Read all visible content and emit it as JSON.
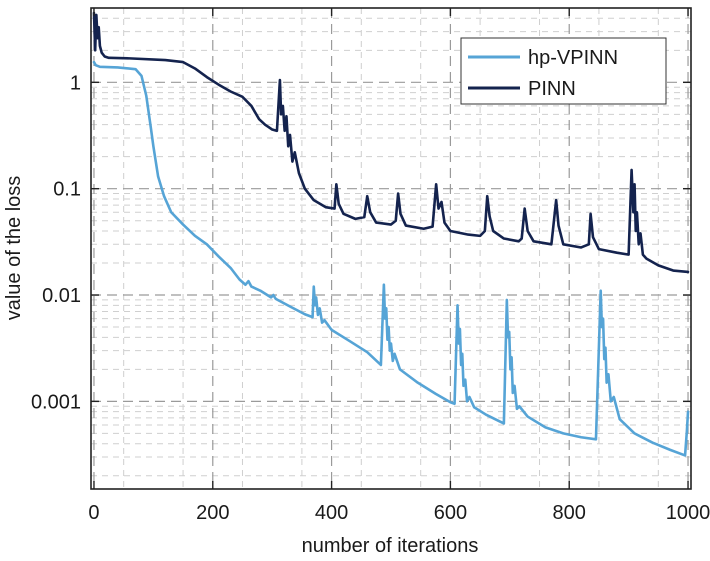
{
  "chart_data": {
    "type": "line",
    "title": "",
    "xlabel": "number of iterations",
    "ylabel": "value of the loss",
    "xscale": "linear",
    "yscale": "log",
    "xlim": [
      -5,
      1005
    ],
    "ylim": [
      0.00015,
      5
    ],
    "xticks": [
      0,
      200,
      400,
      600,
      800,
      1000
    ],
    "xtick_labels": [
      "0",
      "200",
      "400",
      "600",
      "800",
      "1000"
    ],
    "yticks": [
      1,
      0.1,
      0.01,
      0.001
    ],
    "ytick_labels": [
      "1",
      "0.1",
      "0.01",
      "0.001"
    ],
    "grid": true,
    "legend_position": "top-right",
    "series": [
      {
        "name": "hp-VPINN",
        "color": "#56a4d6",
        "points": [
          [
            0,
            1.55
          ],
          [
            3,
            1.45
          ],
          [
            10,
            1.4
          ],
          [
            40,
            1.38
          ],
          [
            70,
            1.33
          ],
          [
            80,
            1.15
          ],
          [
            88,
            0.75
          ],
          [
            95,
            0.4
          ],
          [
            100,
            0.25
          ],
          [
            108,
            0.13
          ],
          [
            118,
            0.085
          ],
          [
            130,
            0.06
          ],
          [
            150,
            0.046
          ],
          [
            170,
            0.036
          ],
          [
            190,
            0.03
          ],
          [
            210,
            0.023
          ],
          [
            230,
            0.018
          ],
          [
            245,
            0.014
          ],
          [
            255,
            0.0125
          ],
          [
            260,
            0.0135
          ],
          [
            265,
            0.012
          ],
          [
            280,
            0.011
          ],
          [
            298,
            0.0095
          ],
          [
            302,
            0.01
          ],
          [
            306,
            0.0092
          ],
          [
            330,
            0.0078
          ],
          [
            355,
            0.0066
          ],
          [
            368,
            0.0062
          ],
          [
            370,
            0.012
          ],
          [
            372,
            0.008
          ],
          [
            374,
            0.0095
          ],
          [
            377,
            0.0065
          ],
          [
            380,
            0.0075
          ],
          [
            384,
            0.0055
          ],
          [
            388,
            0.0058
          ],
          [
            400,
            0.0047
          ],
          [
            430,
            0.0037
          ],
          [
            460,
            0.0029
          ],
          [
            483,
            0.0022
          ],
          [
            488,
            0.0125
          ],
          [
            490,
            0.006
          ],
          [
            492,
            0.0075
          ],
          [
            494,
            0.0038
          ],
          [
            496,
            0.005
          ],
          [
            498,
            0.003
          ],
          [
            500,
            0.0035
          ],
          [
            503,
            0.0024
          ],
          [
            506,
            0.0028
          ],
          [
            515,
            0.002
          ],
          [
            545,
            0.0015
          ],
          [
            575,
            0.00118
          ],
          [
            600,
            0.00098
          ],
          [
            607,
            0.00095
          ],
          [
            612,
            0.008
          ],
          [
            614,
            0.0035
          ],
          [
            616,
            0.0048
          ],
          [
            618,
            0.0022
          ],
          [
            620,
            0.0028
          ],
          [
            622,
            0.0014
          ],
          [
            625,
            0.0016
          ],
          [
            628,
            0.001
          ],
          [
            632,
            0.0011
          ],
          [
            640,
            0.00088
          ],
          [
            660,
            0.00075
          ],
          [
            680,
            0.00066
          ],
          [
            690,
            0.00062
          ],
          [
            695,
            0.009
          ],
          [
            697,
            0.004
          ],
          [
            699,
            0.0045
          ],
          [
            701,
            0.002
          ],
          [
            703,
            0.0026
          ],
          [
            705,
            0.0012
          ],
          [
            708,
            0.0014
          ],
          [
            712,
            0.00085
          ],
          [
            716,
            0.0009
          ],
          [
            730,
            0.00072
          ],
          [
            760,
            0.00057
          ],
          [
            790,
            0.0005
          ],
          [
            820,
            0.00046
          ],
          [
            845,
            0.00044
          ],
          [
            853,
            0.011
          ],
          [
            855,
            0.005
          ],
          [
            857,
            0.006
          ],
          [
            859,
            0.0025
          ],
          [
            861,
            0.0032
          ],
          [
            863,
            0.0015
          ],
          [
            866,
            0.0018
          ],
          [
            870,
            0.001
          ],
          [
            875,
            0.0011
          ],
          [
            885,
            0.00068
          ],
          [
            910,
            0.0005
          ],
          [
            940,
            0.00041
          ],
          [
            970,
            0.00035
          ],
          [
            995,
            0.00031
          ],
          [
            998,
            0.00052
          ],
          [
            1000,
            0.0008
          ]
        ]
      },
      {
        "name": "PINN",
        "color": "#14234e",
        "points": [
          [
            0,
            4.5
          ],
          [
            2,
            2.0
          ],
          [
            4,
            4.3
          ],
          [
            6,
            2.6
          ],
          [
            8,
            3.3
          ],
          [
            10,
            2.2
          ],
          [
            13,
            1.9
          ],
          [
            18,
            1.75
          ],
          [
            25,
            1.7
          ],
          [
            60,
            1.68
          ],
          [
            120,
            1.62
          ],
          [
            150,
            1.55
          ],
          [
            170,
            1.35
          ],
          [
            190,
            1.12
          ],
          [
            210,
            0.95
          ],
          [
            230,
            0.82
          ],
          [
            250,
            0.73
          ],
          [
            265,
            0.6
          ],
          [
            278,
            0.45
          ],
          [
            288,
            0.4
          ],
          [
            300,
            0.36
          ],
          [
            308,
            0.35
          ],
          [
            313,
            1.05
          ],
          [
            315,
            0.5
          ],
          [
            318,
            0.6
          ],
          [
            321,
            0.35
          ],
          [
            324,
            0.48
          ],
          [
            327,
            0.25
          ],
          [
            330,
            0.32
          ],
          [
            334,
            0.18
          ],
          [
            338,
            0.22
          ],
          [
            345,
            0.14
          ],
          [
            355,
            0.1
          ],
          [
            370,
            0.078
          ],
          [
            390,
            0.067
          ],
          [
            405,
            0.065
          ],
          [
            408,
            0.11
          ],
          [
            412,
            0.072
          ],
          [
            420,
            0.058
          ],
          [
            440,
            0.052
          ],
          [
            455,
            0.054
          ],
          [
            460,
            0.085
          ],
          [
            465,
            0.06
          ],
          [
            475,
            0.048
          ],
          [
            500,
            0.046
          ],
          [
            508,
            0.05
          ],
          [
            512,
            0.09
          ],
          [
            516,
            0.058
          ],
          [
            525,
            0.045
          ],
          [
            555,
            0.042
          ],
          [
            570,
            0.044
          ],
          [
            576,
            0.11
          ],
          [
            580,
            0.065
          ],
          [
            585,
            0.075
          ],
          [
            590,
            0.048
          ],
          [
            600,
            0.04
          ],
          [
            630,
            0.037
          ],
          [
            650,
            0.036
          ],
          [
            658,
            0.04
          ],
          [
            662,
            0.085
          ],
          [
            666,
            0.055
          ],
          [
            672,
            0.04
          ],
          [
            690,
            0.034
          ],
          [
            715,
            0.032
          ],
          [
            720,
            0.034
          ],
          [
            725,
            0.065
          ],
          [
            730,
            0.04
          ],
          [
            740,
            0.032
          ],
          [
            770,
            0.03
          ],
          [
            778,
            0.078
          ],
          [
            782,
            0.045
          ],
          [
            790,
            0.03
          ],
          [
            820,
            0.028
          ],
          [
            833,
            0.03
          ],
          [
            836,
            0.058
          ],
          [
            840,
            0.035
          ],
          [
            850,
            0.027
          ],
          [
            880,
            0.025
          ],
          [
            900,
            0.024
          ],
          [
            905,
            0.15
          ],
          [
            908,
            0.06
          ],
          [
            910,
            0.11
          ],
          [
            912,
            0.04
          ],
          [
            914,
            0.06
          ],
          [
            917,
            0.03
          ],
          [
            920,
            0.038
          ],
          [
            924,
            0.024
          ],
          [
            930,
            0.022
          ],
          [
            950,
            0.019
          ],
          [
            975,
            0.017
          ],
          [
            1000,
            0.0165
          ]
        ]
      }
    ]
  }
}
